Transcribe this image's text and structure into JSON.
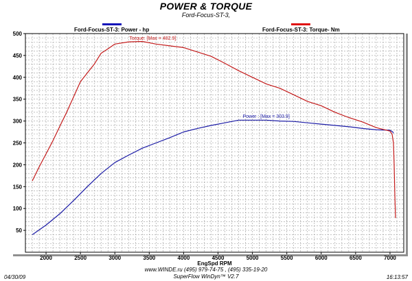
{
  "chart_data": {
    "type": "line",
    "title": "POWER & TORQUE",
    "subtitle": "Ford-Focus-ST-3,",
    "xlabel": "EngSpd  RPM",
    "xlim": [
      1700,
      7200
    ],
    "ylim": [
      0,
      500
    ],
    "xticks": [
      2000,
      2500,
      3000,
      3500,
      4000,
      4500,
      5000,
      5500,
      6000,
      6500,
      7000
    ],
    "yticks": [
      50,
      100,
      150,
      200,
      250,
      300,
      350,
      400,
      450,
      500
    ],
    "x_minor_step": 100,
    "y_minor_step": 10,
    "grid": true,
    "legend_position": "top",
    "series": [
      {
        "name": "Ford-Focus-ST-3: Power -  hp",
        "color": "#1a1aa6",
        "swatch_color": "#1313b9",
        "annotation": "Power : [Max = 303.9]",
        "annotation_at": [
          5200,
          307
        ],
        "x": [
          1800,
          2000,
          2200,
          2400,
          2600,
          2800,
          3000,
          3200,
          3400,
          3600,
          3800,
          4000,
          4200,
          4400,
          4600,
          4800,
          5000,
          5200,
          5400,
          5600,
          5800,
          6000,
          6200,
          6400,
          6600,
          6800,
          7000,
          7020,
          7040,
          7050
        ],
        "values": [
          40,
          62,
          88,
          118,
          150,
          180,
          205,
          222,
          238,
          250,
          262,
          275,
          283,
          290,
          296,
          302,
          302,
          302,
          300,
          299,
          296,
          293,
          290,
          287,
          283,
          280,
          279,
          277,
          275,
          272
        ]
      },
      {
        "name": "Ford-Focus-ST-3: Torque-  Nm",
        "color": "#c41a1a",
        "swatch_color": "#e01010",
        "annotation": "Torque: [Max = 482.9]",
        "annotation_at": [
          3550,
          486
        ],
        "x": [
          1800,
          1900,
          2000,
          2100,
          2200,
          2300,
          2400,
          2500,
          2600,
          2700,
          2800,
          2900,
          3000,
          3200,
          3400,
          3600,
          3800,
          4000,
          4200,
          4400,
          4600,
          4800,
          5000,
          5200,
          5400,
          5600,
          5800,
          6000,
          6200,
          6400,
          6600,
          6800,
          7000,
          7030,
          7050,
          7060,
          7070,
          7080
        ],
        "values": [
          163,
          195,
          225,
          255,
          288,
          320,
          355,
          390,
          410,
          430,
          455,
          465,
          476,
          481,
          482,
          476,
          472,
          468,
          458,
          448,
          432,
          415,
          400,
          385,
          375,
          360,
          345,
          335,
          320,
          308,
          298,
          285,
          277,
          270,
          250,
          200,
          130,
          78
        ]
      }
    ]
  },
  "footer": {
    "date": "04/30/09",
    "time": "16:13:57",
    "line1": "www.WINDE.ru  (495) 979-74-75 , (495) 335-19-20",
    "line2": "SuperFlow WinDyn™ V2.7"
  }
}
